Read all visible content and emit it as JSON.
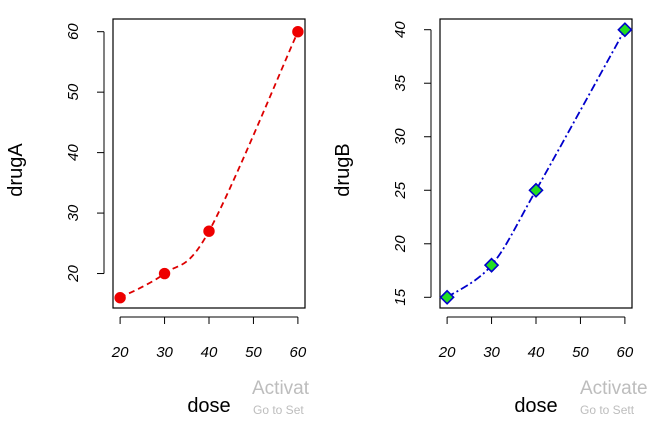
{
  "chart_data": [
    {
      "type": "line",
      "x": [
        20,
        30,
        40,
        60
      ],
      "y": [
        16,
        20,
        27,
        60
      ],
      "xlabel": "dose",
      "ylabel": "drugA",
      "xticks": [
        20,
        30,
        40,
        50,
        60
      ],
      "yticks": [
        20,
        30,
        40,
        50,
        60
      ],
      "xlim": [
        18.4,
        61.6
      ],
      "ylim": [
        14.3,
        62.1
      ],
      "line_style": "dashed",
      "line_color": "#dd0000",
      "marker": "circle",
      "marker_fill": "#ee0000",
      "marker_stroke": "#ee0000",
      "grid": false
    },
    {
      "type": "line",
      "x": [
        20,
        30,
        40,
        60
      ],
      "y": [
        15,
        18,
        25,
        40
      ],
      "xlabel": "dose",
      "ylabel": "drugB",
      "xticks": [
        20,
        30,
        40,
        50,
        60
      ],
      "yticks": [
        15,
        20,
        25,
        30,
        35,
        40
      ],
      "xlim": [
        18.4,
        61.6
      ],
      "ylim": [
        14.0,
        41.0
      ],
      "line_style": "dotdash",
      "line_color": "#0000cc",
      "marker": "diamond",
      "marker_fill": "#22dd22",
      "marker_stroke": "#0000cc",
      "grid": false
    }
  ],
  "overlay": [
    {
      "title": "Activat",
      "subtitle": "Go to Set"
    },
    {
      "title": "Activate",
      "subtitle": "Go to Sett"
    }
  ]
}
